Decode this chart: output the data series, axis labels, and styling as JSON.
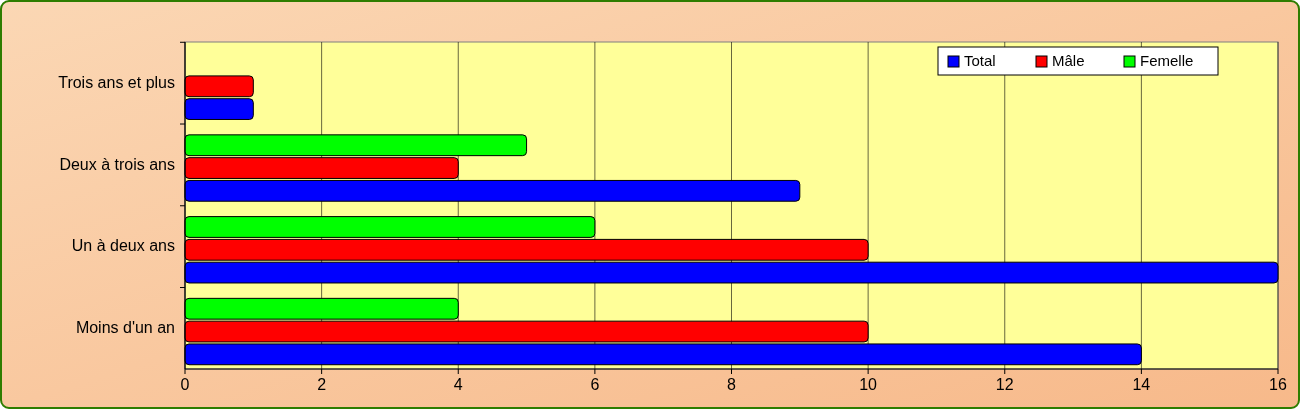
{
  "chart_data": {
    "type": "bar",
    "orientation": "horizontal",
    "categories": [
      "Trois ans et plus",
      "Deux à trois ans",
      "Un à deux ans",
      "Moins d'un an"
    ],
    "series": [
      {
        "name": "Total",
        "color": "#0000ff",
        "values": [
          1,
          9,
          16,
          14
        ]
      },
      {
        "name": "Mâle",
        "color": "#ff0000",
        "values": [
          1,
          4,
          10,
          10
        ]
      },
      {
        "name": "Femelle",
        "color": "#00ff00",
        "values": [
          0,
          5,
          6,
          4
        ]
      }
    ],
    "xlim": [
      0,
      16
    ],
    "xticks": [
      0,
      2,
      4,
      6,
      8,
      10,
      12,
      14,
      16
    ],
    "grid": "x",
    "legend": "top right"
  }
}
